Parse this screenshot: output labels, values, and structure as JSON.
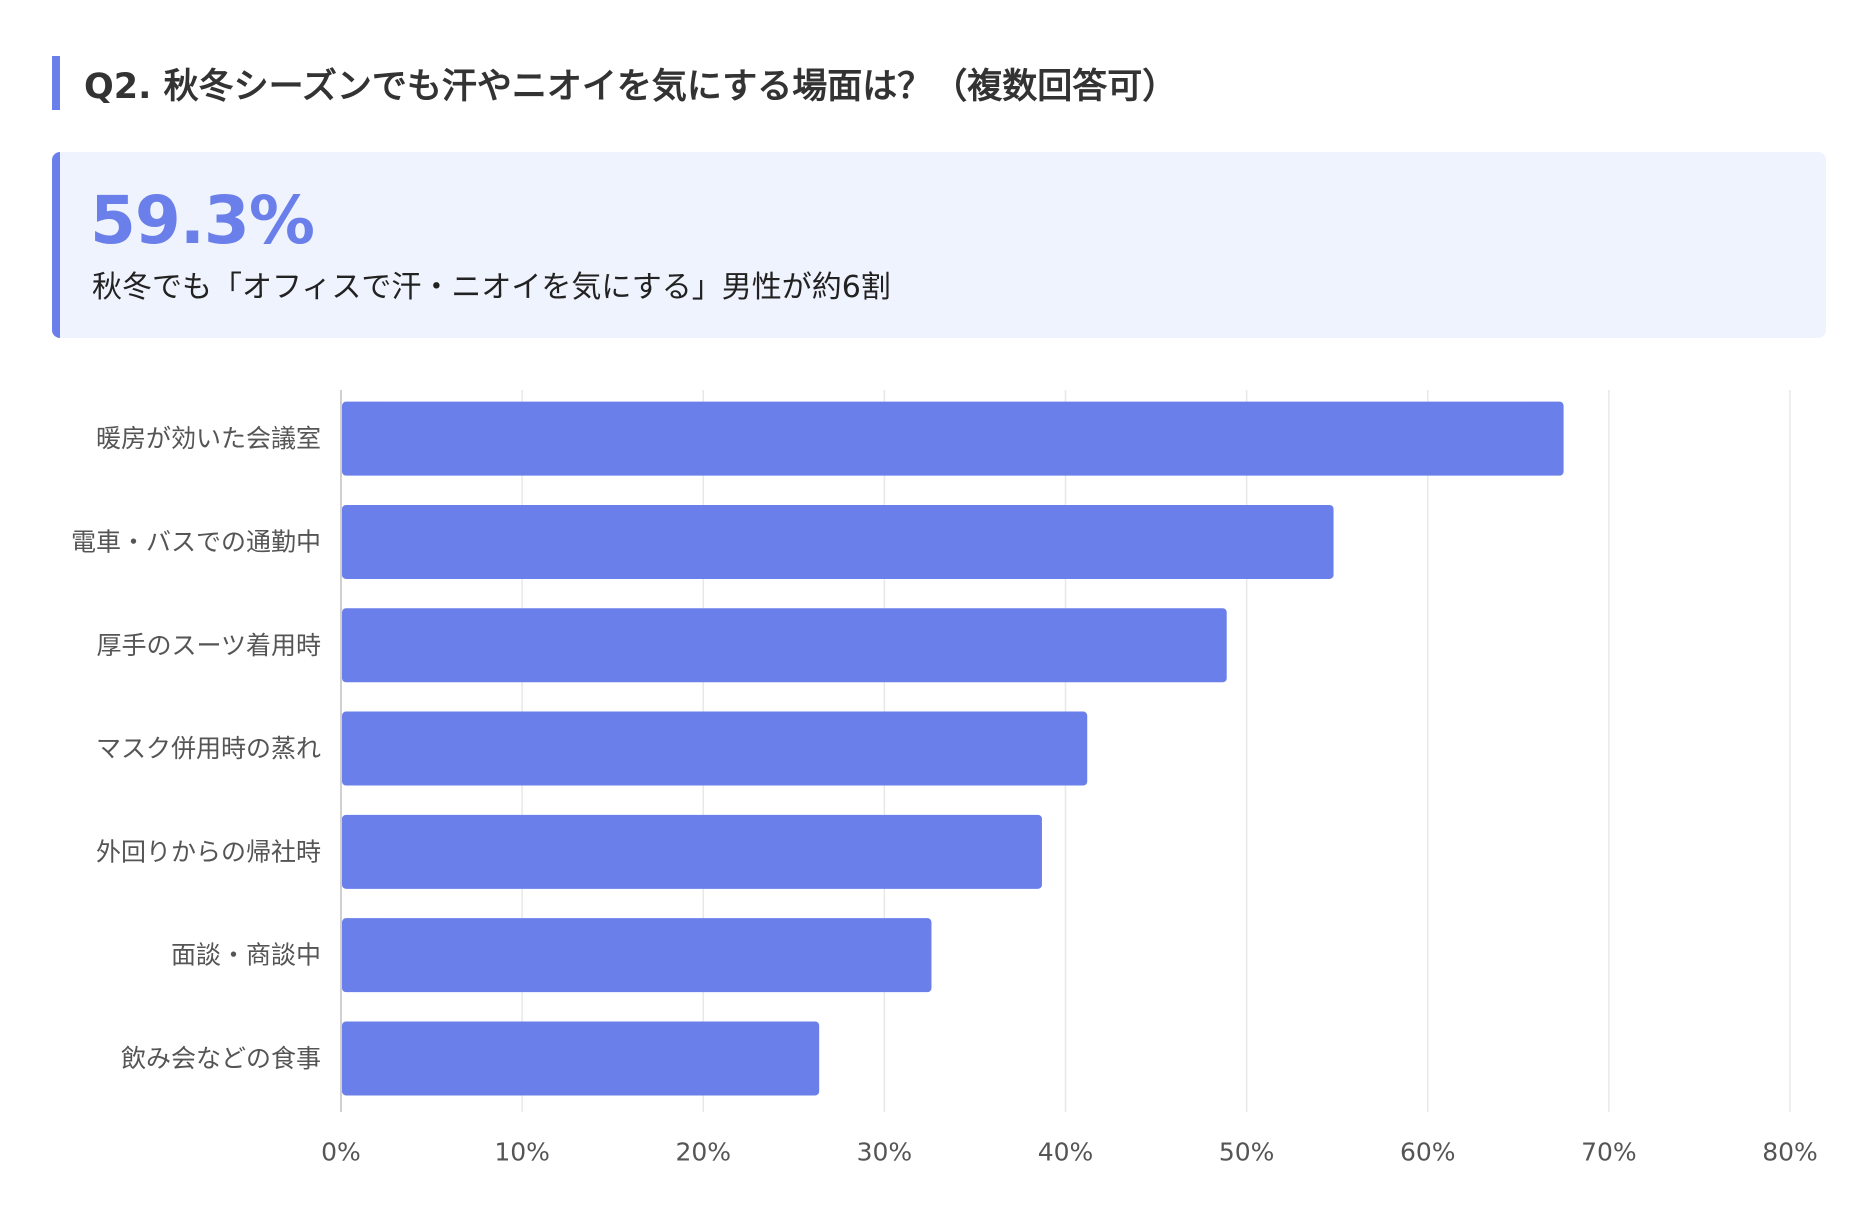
{
  "header": {
    "title": "Q2. 秋冬シーズンでも汗やニオイを気にする場面は？（複数回答可）"
  },
  "highlight": {
    "value": "59.3%",
    "caption": "秋冬でも「オフィスで汗・ニオイを気にする」男性が約6割"
  },
  "colors": {
    "accent": "#6a7fe9",
    "highlight_bg": "#eff3fe",
    "bar": "#6a7fe9",
    "grid": "#e8e8e8",
    "label": "#555555"
  },
  "chart_data": {
    "type": "bar",
    "orientation": "horizontal",
    "categories": [
      "暖房が効いた会議室",
      "電車・バスでの通勤中",
      "厚手のスーツ着用時",
      "マスク併用時の蒸れ",
      "外回りからの帰社時",
      "面談・商談中",
      "飲み会などの食事"
    ],
    "values": [
      67.5,
      54.8,
      48.9,
      41.2,
      38.7,
      32.6,
      26.4
    ],
    "xlim": [
      0,
      80
    ],
    "xticks": [
      0,
      10,
      20,
      30,
      40,
      50,
      60,
      70,
      80
    ],
    "tick_labels": [
      "0%",
      "10%",
      "20%",
      "30%",
      "40%",
      "50%",
      "60%",
      "70%",
      "80%"
    ],
    "grid": true,
    "legend": "none"
  }
}
